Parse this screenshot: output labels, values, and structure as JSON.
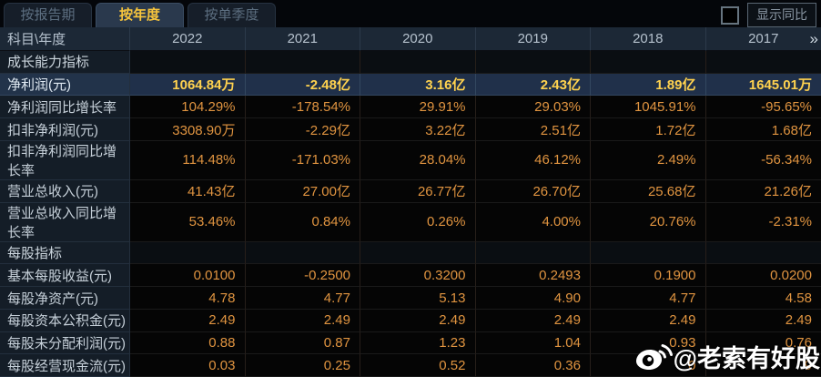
{
  "tabs": [
    {
      "label": "按报告期",
      "active": false
    },
    {
      "label": "按年度",
      "active": true
    },
    {
      "label": "按单季度",
      "active": false
    }
  ],
  "controls": {
    "yoy_checkbox_checked": false,
    "yoy_button_label": "显示同比"
  },
  "table": {
    "corner_label": "科目\\年度",
    "years": [
      "2022",
      "2021",
      "2020",
      "2019",
      "2018",
      "2017"
    ],
    "more_label": "»",
    "rows": [
      {
        "type": "section",
        "label": "成长能力指标",
        "cells": [
          "",
          "",
          "",
          "",
          "",
          ""
        ]
      },
      {
        "type": "highlight",
        "label": "净利润(元)",
        "cells": [
          "1064.84万",
          "-2.48亿",
          "3.16亿",
          "2.43亿",
          "1.89亿",
          "1645.01万"
        ]
      },
      {
        "type": "data",
        "label": "净利润同比增长率",
        "cells": [
          "104.29%",
          "-178.54%",
          "29.91%",
          "29.03%",
          "1045.91%",
          "-95.65%"
        ]
      },
      {
        "type": "data",
        "label": "扣非净利润(元)",
        "cells": [
          "3308.90万",
          "-2.29亿",
          "3.22亿",
          "2.51亿",
          "1.72亿",
          "1.68亿"
        ]
      },
      {
        "type": "data",
        "label": "扣非净利润同比增长率",
        "cells": [
          "114.48%",
          "-171.03%",
          "28.04%",
          "46.12%",
          "2.49%",
          "-56.34%"
        ]
      },
      {
        "type": "data",
        "label": "营业总收入(元)",
        "cells": [
          "41.43亿",
          "27.00亿",
          "26.77亿",
          "26.70亿",
          "25.68亿",
          "21.26亿"
        ]
      },
      {
        "type": "data",
        "label": "营业总收入同比增长率",
        "cells": [
          "53.46%",
          "0.84%",
          "0.26%",
          "4.00%",
          "20.76%",
          "-2.31%"
        ]
      },
      {
        "type": "section",
        "label": "每股指标",
        "cells": [
          "",
          "",
          "",
          "",
          "",
          ""
        ]
      },
      {
        "type": "data",
        "label": "基本每股收益(元)",
        "cells": [
          "0.0100",
          "-0.2500",
          "0.3200",
          "0.2493",
          "0.1900",
          "0.0200"
        ]
      },
      {
        "type": "data",
        "label": "每股净资产(元)",
        "cells": [
          "4.78",
          "4.77",
          "5.13",
          "4.90",
          "4.77",
          "4.58"
        ]
      },
      {
        "type": "data",
        "label": "每股资本公积金(元)",
        "cells": [
          "2.49",
          "2.49",
          "2.49",
          "2.49",
          "2.49",
          "2.49"
        ]
      },
      {
        "type": "data",
        "label": "每股未分配利润(元)",
        "cells": [
          "0.88",
          "0.87",
          "1.23",
          "1.04",
          "0.93",
          "0.76"
        ]
      },
      {
        "type": "data",
        "label": "每股经营现金流(元)",
        "cells": [
          "0.03",
          "0.25",
          "0.52",
          "0.36",
          "0",
          "9"
        ]
      }
    ]
  },
  "watermark": {
    "text": "@老索有好股"
  },
  "colors": {
    "value_gold": "#e09440",
    "highlight_gold": "#ffd24f",
    "active_tab_text": "#f7c53d",
    "header_bg": "#1c2836",
    "label_bg": "#141d27",
    "highlight_bg": "#20304a",
    "data_bg": "#050505"
  }
}
